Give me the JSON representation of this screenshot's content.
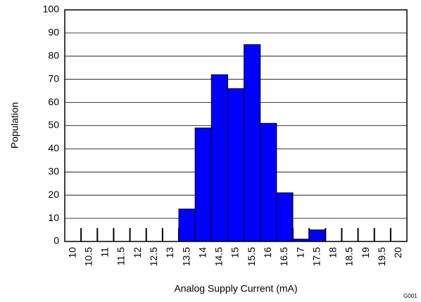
{
  "chart_data": {
    "type": "bar",
    "x_label": "Analog Supply Current (mA)",
    "y_label": "Population",
    "note": "G001",
    "categories": [
      "10",
      "10.5",
      "11",
      "11.5",
      "12",
      "12.5",
      "13",
      "13.5",
      "14",
      "14.5",
      "15",
      "15.5",
      "16",
      "16.5",
      "17",
      "17.5",
      "18",
      "18.5",
      "19",
      "19.5",
      "20"
    ],
    "values": [
      0,
      0,
      0,
      0,
      0,
      0,
      0,
      14,
      49,
      72,
      66,
      85,
      51,
      21,
      1,
      5,
      0,
      0,
      0,
      0,
      0
    ],
    "color": "#0000ff",
    "ylim": [
      0,
      100
    ],
    "yticks": [
      0,
      10,
      20,
      30,
      40,
      50,
      60,
      70,
      80,
      90,
      100
    ],
    "grid": true
  }
}
